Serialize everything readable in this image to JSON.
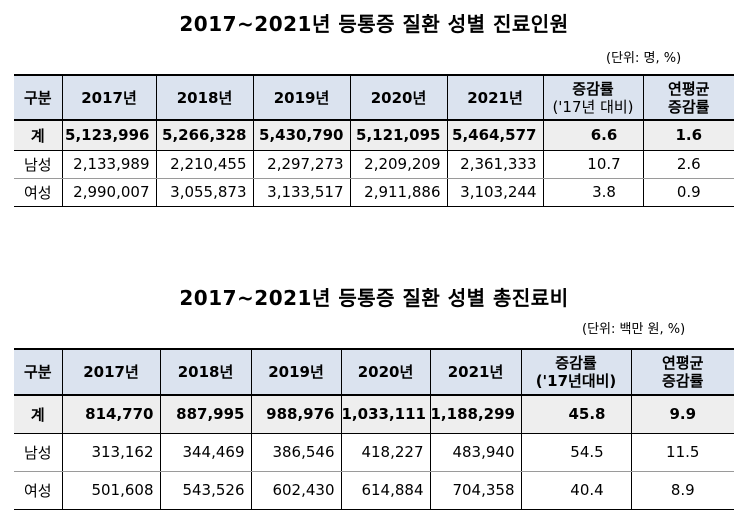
{
  "table1": {
    "title": "2017~2021년 등통증 질환 성별 진료인원",
    "unit": "(단위: 명, %)",
    "headers": [
      "구분",
      "2017년",
      "2018년",
      "2019년",
      "2020년",
      "2021년",
      "증감률",
      "('17년 대비)",
      "연평균",
      "증감률"
    ],
    "rows": [
      [
        "계",
        "5,123,996",
        "5,266,328",
        "5,430,790",
        "5,121,095",
        "5,464,577",
        "6.6",
        "1.6"
      ],
      [
        "남성",
        "2,133,989",
        "2,210,455",
        "2,297,273",
        "2,209,209",
        "2,361,333",
        "10.7",
        "2.6"
      ],
      [
        "여성",
        "2,990,007",
        "3,055,873",
        "3,133,517",
        "2,911,886",
        "3,103,244",
        "3.8",
        "0.9"
      ]
    ]
  },
  "table2": {
    "title": "2017~2021년 등통증 질환 성별 총진료비",
    "unit": "(단위: 백만 원, %)",
    "headers": [
      "구분",
      "2017년",
      "2018년",
      "2019년",
      "2020년",
      "2021년",
      "증감률",
      "('17년대비)",
      "연평균",
      "증감률"
    ],
    "rows": [
      [
        "계",
        "814,770",
        "887,995",
        "988,976",
        "1,033,111",
        "1,188,299",
        "45.8",
        "9.9"
      ],
      [
        "남성",
        "313,162",
        "344,469",
        "386,546",
        "418,227",
        "483,940",
        "54.5",
        "11.5"
      ],
      [
        "여성",
        "501,608",
        "543,526",
        "602,430",
        "614,884",
        "704,358",
        "40.4",
        "8.9"
      ]
    ]
  }
}
